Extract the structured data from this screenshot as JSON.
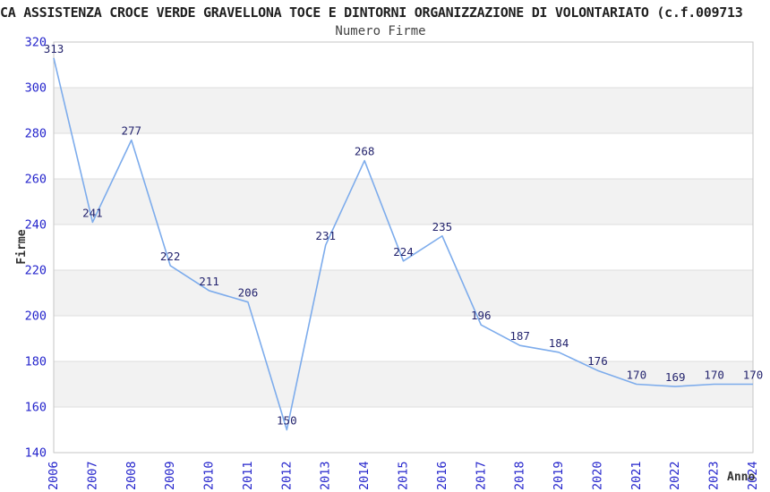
{
  "header": {
    "title": "CA ASSISTENZA CROCE VERDE GRAVELLONA TOCE E DINTORNI ORGANIZZAZIONE DI VOLONTARIATO (c.f.009713",
    "subtitle": "Numero Firme"
  },
  "chart_data": {
    "type": "line",
    "title": "Numero Firme",
    "x": [
      2006,
      2007,
      2008,
      2009,
      2010,
      2011,
      2012,
      2013,
      2014,
      2015,
      2016,
      2017,
      2018,
      2019,
      2020,
      2021,
      2022,
      2023,
      2024
    ],
    "series": [
      {
        "name": "Numero Firme",
        "values": [
          313,
          241,
          277,
          222,
          211,
          206,
          150,
          231,
          268,
          224,
          235,
          196,
          187,
          184,
          176,
          170,
          169,
          170,
          170
        ]
      }
    ],
    "xlabel": "Anno",
    "ylabel": "Firme",
    "ylim": [
      140,
      320
    ],
    "ytick_step": 20,
    "yticks": [
      140,
      160,
      180,
      200,
      220,
      240,
      260,
      280,
      300,
      320
    ],
    "grid": true,
    "legend_position": "none",
    "point_labels_shown": true,
    "colors": {
      "line": "#7dacec",
      "tick_label": "#2424cc",
      "point_label": "#24246e",
      "band_gray": "#f2f2f2",
      "band_white": "#ffffff",
      "gridline": "#dddddd",
      "border": "#c6c6c6",
      "axis_label": "#333333"
    }
  }
}
